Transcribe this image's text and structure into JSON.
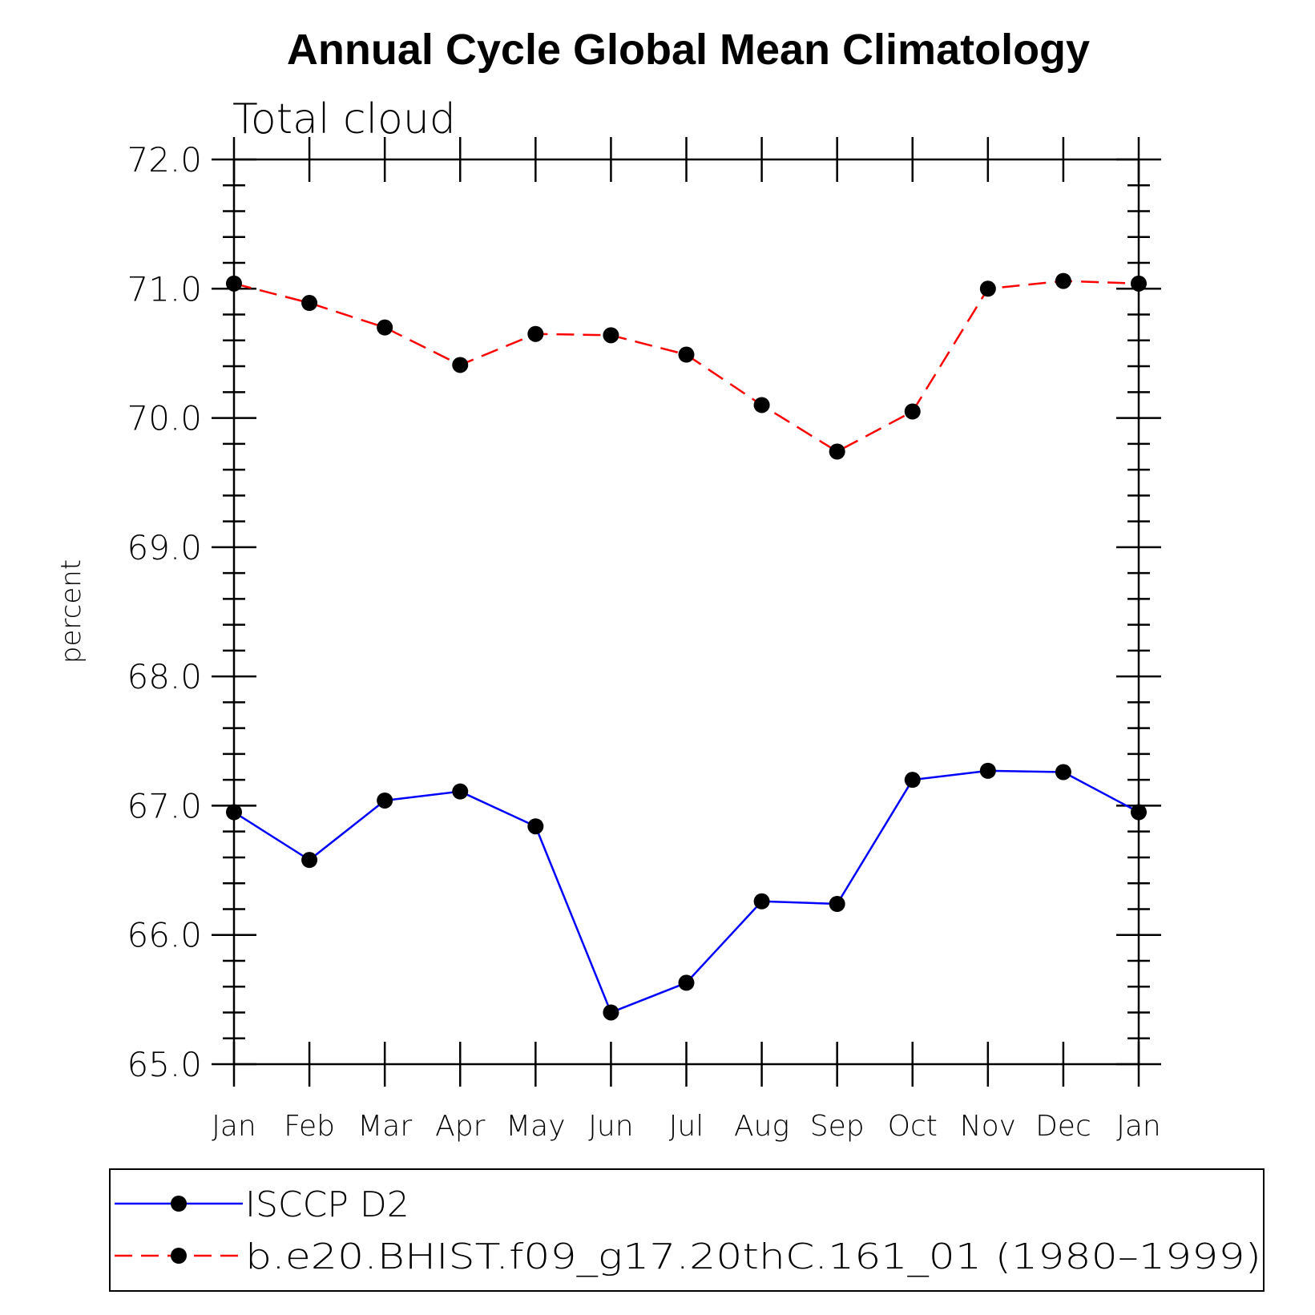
{
  "chart_data": {
    "type": "line",
    "title": "Annual Cycle Global Mean Climatology",
    "subtitle": "Total cloud",
    "xlabel": "",
    "ylabel": "percent",
    "categories": [
      "Jan",
      "Feb",
      "Mar",
      "Apr",
      "May",
      "Jun",
      "Jul",
      "Aug",
      "Sep",
      "Oct",
      "Nov",
      "Dec",
      "Jan"
    ],
    "ylim": [
      65.0,
      72.0
    ],
    "yticks": [
      "65.0",
      "66.0",
      "67.0",
      "68.0",
      "69.0",
      "70.0",
      "71.0",
      "72.0"
    ],
    "ytick_values": [
      65,
      66,
      67,
      68,
      69,
      70,
      71,
      72
    ],
    "grid": false,
    "legend_position": "bottom",
    "series": [
      {
        "name": "ISCCP D2",
        "color": "#0000ff",
        "line_style": "solid",
        "values": [
          66.95,
          66.58,
          67.04,
          67.11,
          66.84,
          65.4,
          65.63,
          66.26,
          66.24,
          67.2,
          67.27,
          67.26,
          66.95
        ]
      },
      {
        "name": "b.e20.BHIST.f09_g17.20thC.161_01 (1980–1999)",
        "color": "#ff0000",
        "line_style": "dashed",
        "values": [
          71.04,
          70.89,
          70.7,
          70.41,
          70.65,
          70.64,
          70.49,
          70.1,
          69.74,
          70.05,
          71.0,
          71.06,
          71.04
        ]
      }
    ]
  }
}
